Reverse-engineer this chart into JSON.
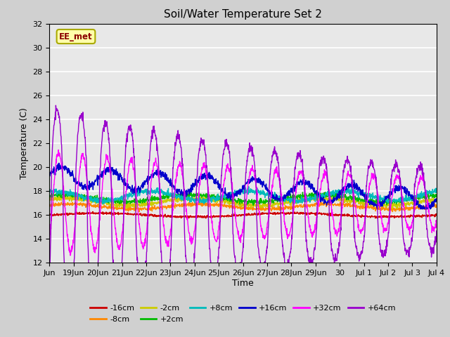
{
  "title": "Soil/Water Temperature Set 2",
  "xlabel": "Time",
  "ylabel": "Temperature (C)",
  "watermark": "EE_met",
  "ylim": [
    12,
    32
  ],
  "yticks": [
    12,
    14,
    16,
    18,
    20,
    22,
    24,
    26,
    28,
    30,
    32
  ],
  "fig_bg": "#d0d0d0",
  "plot_bg": "#e8e8e8",
  "series_colors": {
    "-16cm": "#cc0000",
    "-8cm": "#ff8800",
    "-2cm": "#cccc00",
    "+2cm": "#00bb00",
    "+8cm": "#00bbbb",
    "+16cm": "#0000cc",
    "+32cm": "#ff00ff",
    "+64cm": "#9900cc"
  },
  "x_start": 18,
  "x_end": 34,
  "xtick_labels": [
    "Jun",
    "19Jun",
    "20Jun",
    "21Jun",
    "22Jun",
    "23Jun",
    "24Jun",
    "25Jun",
    "26Jun",
    "27Jun",
    "28Jun",
    "29Jun",
    "30",
    "Jul 1",
    "Jul 2",
    "Jul 3",
    "Jul 4"
  ],
  "xtick_positions": [
    18,
    19,
    20,
    21,
    22,
    23,
    24,
    25,
    26,
    27,
    28,
    29,
    30,
    31,
    32,
    33,
    34
  ],
  "n_points": 1600
}
